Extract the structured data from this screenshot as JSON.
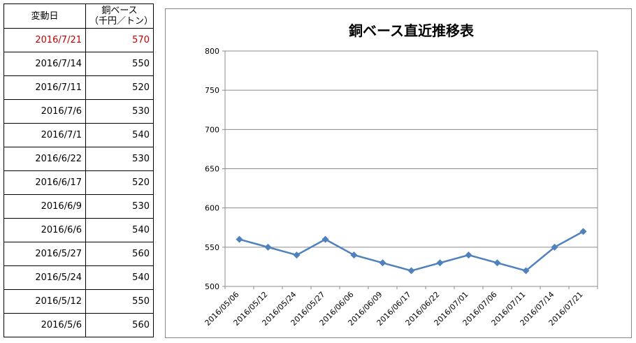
{
  "table": {
    "headers": {
      "date": "変動日",
      "price_line1": "銅ベース",
      "price_line2": "（千円／トン）"
    },
    "highlight_color": "#c00000",
    "rows": [
      {
        "date": "2016/7/21",
        "price": "570"
      },
      {
        "date": "2016/7/14",
        "price": "550"
      },
      {
        "date": "2016/7/11",
        "price": "520"
      },
      {
        "date": "2016/7/6",
        "price": "530"
      },
      {
        "date": "2016/7/1",
        "price": "540"
      },
      {
        "date": "2016/6/22",
        "price": "530"
      },
      {
        "date": "2016/6/17",
        "price": "520"
      },
      {
        "date": "2016/6/9",
        "price": "530"
      },
      {
        "date": "2016/6/6",
        "price": "540"
      },
      {
        "date": "2016/5/27",
        "price": "560"
      },
      {
        "date": "2016/5/24",
        "price": "540"
      },
      {
        "date": "2016/5/12",
        "price": "550"
      },
      {
        "date": "2016/5/6",
        "price": "560"
      }
    ]
  },
  "chart_data": {
    "type": "line",
    "title": "銅ベース直近推移表",
    "x": [
      "2016/05/06",
      "2016/05/12",
      "2016/05/24",
      "2016/05/27",
      "2016/06/06",
      "2016/06/09",
      "2016/06/17",
      "2016/06/22",
      "2016/07/01",
      "2016/07/06",
      "2016/07/11",
      "2016/07/14",
      "2016/07/21"
    ],
    "series": [
      {
        "values": [
          560,
          550,
          540,
          560,
          540,
          530,
          520,
          530,
          540,
          530,
          520,
          550,
          570
        ],
        "color": "#4f81bd",
        "marker": "diamond"
      }
    ],
    "ylim": [
      500,
      800
    ],
    "yticks": [
      500,
      550,
      600,
      650,
      700,
      750,
      800
    ],
    "grid": true,
    "legend": "none"
  }
}
